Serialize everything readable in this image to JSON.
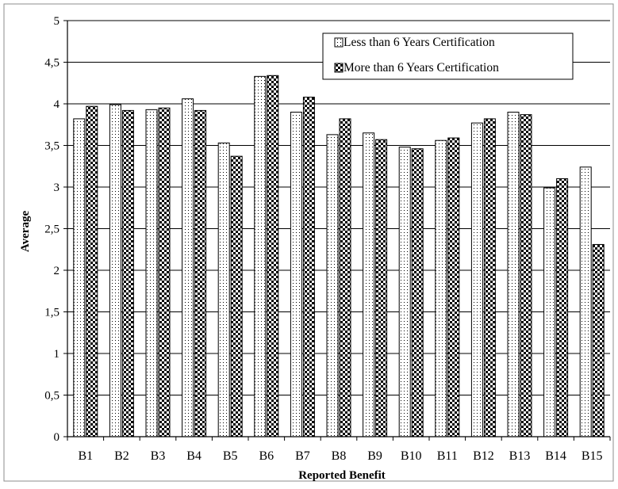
{
  "chart_data": {
    "type": "bar",
    "title": "",
    "xlabel": "Reported Benefit",
    "ylabel": "Average",
    "ylim": [
      0,
      5
    ],
    "yticks": [
      "0",
      "0,5",
      "1",
      "1,5",
      "2",
      "2,5",
      "3",
      "3,5",
      "4",
      "4,5",
      "5"
    ],
    "grid": true,
    "legend_position": "top-right",
    "categories": [
      "B1",
      "B2",
      "B3",
      "B4",
      "B5",
      "B6",
      "B7",
      "B8",
      "B9",
      "B10",
      "B11",
      "B12",
      "B13",
      "B14",
      "B15"
    ],
    "series": [
      {
        "name": "Less than 6 Years Certification",
        "pattern": "dots",
        "values": [
          3.82,
          3.99,
          3.93,
          4.06,
          3.53,
          4.33,
          3.9,
          3.63,
          3.65,
          3.48,
          3.56,
          3.77,
          3.9,
          2.99,
          3.24
        ]
      },
      {
        "name": "More than 6 Years Certification",
        "pattern": "checker",
        "values": [
          3.97,
          3.92,
          3.95,
          3.92,
          3.37,
          4.34,
          4.08,
          3.82,
          3.57,
          3.46,
          3.59,
          3.82,
          3.87,
          3.1,
          2.31
        ]
      }
    ],
    "colors": {
      "bar_stroke": "#000000",
      "grid": "#000000",
      "frame": "#8c8c8c"
    }
  }
}
